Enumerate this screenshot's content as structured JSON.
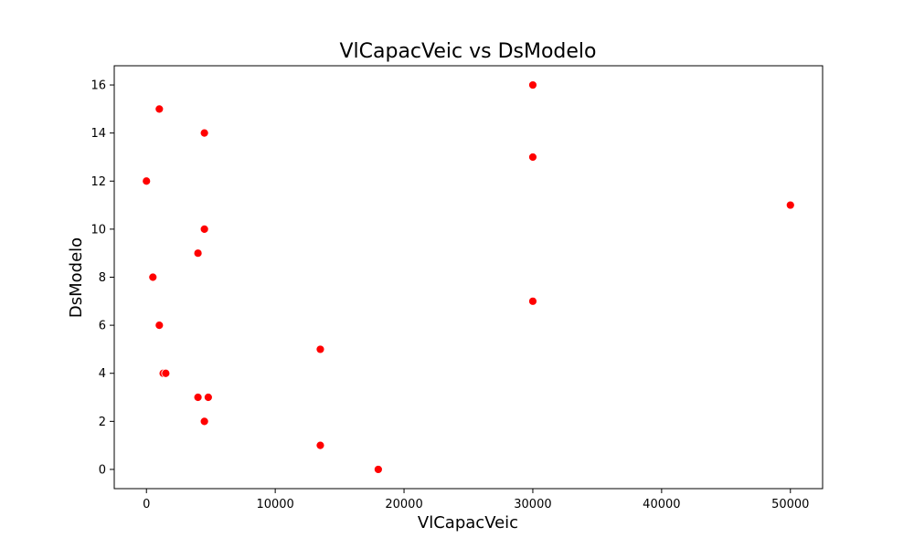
{
  "chart_data": {
    "type": "scatter",
    "title": "VlCapacVeic vs DsModelo",
    "xlabel": "VlCapacVeic",
    "ylabel": "DsModelo",
    "xlim": [
      -2500,
      52500
    ],
    "ylim": [
      -0.8,
      16.8
    ],
    "xticks": [
      0,
      10000,
      20000,
      30000,
      40000,
      50000
    ],
    "yticks": [
      0,
      2,
      4,
      6,
      8,
      10,
      12,
      14,
      16
    ],
    "grid": false,
    "marker_color": "#ff0000",
    "points": [
      {
        "x": 1000,
        "y": 15
      },
      {
        "x": 4500,
        "y": 14
      },
      {
        "x": 30000,
        "y": 16
      },
      {
        "x": 30000,
        "y": 13
      },
      {
        "x": 0,
        "y": 12
      },
      {
        "x": 50000,
        "y": 11
      },
      {
        "x": 4500,
        "y": 10
      },
      {
        "x": 4000,
        "y": 9
      },
      {
        "x": 500,
        "y": 8
      },
      {
        "x": 30000,
        "y": 7
      },
      {
        "x": 1000,
        "y": 6
      },
      {
        "x": 13500,
        "y": 5
      },
      {
        "x": 1300,
        "y": 4
      },
      {
        "x": 1500,
        "y": 4
      },
      {
        "x": 4000,
        "y": 3
      },
      {
        "x": 4800,
        "y": 3
      },
      {
        "x": 4500,
        "y": 2
      },
      {
        "x": 13500,
        "y": 1
      },
      {
        "x": 18000,
        "y": 0
      }
    ]
  }
}
